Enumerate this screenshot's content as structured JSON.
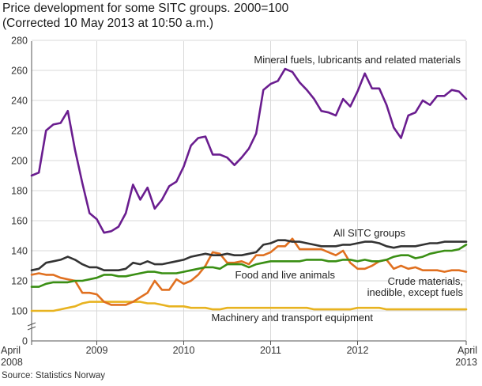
{
  "title_line1": "Price development for some SITC groups. 2000=100",
  "title_line2": "(Corrected 10 May 2013 at 10:50 a.m.)",
  "source": "Source: Statistics Norway",
  "chart_data": {
    "type": "line",
    "title": "Price development for some SITC groups. 2000=100",
    "subtitle": "(Corrected 10 May 2013 at 10:50 a.m.)",
    "xlabel": "",
    "ylabel": "",
    "ylim": [
      0,
      280
    ],
    "yticks": [
      0,
      100,
      120,
      140,
      160,
      180,
      200,
      220,
      240,
      260,
      280
    ],
    "axis_break": true,
    "grid": true,
    "x_start_month": "2008-04",
    "x_end_month": "2013-04",
    "x_tick_labels": [
      {
        "month_index": 0,
        "line1": "April",
        "line2": "2008"
      },
      {
        "month_index": 9,
        "line1": "2009",
        "line2": ""
      },
      {
        "month_index": 21,
        "line1": "2010",
        "line2": ""
      },
      {
        "month_index": 33,
        "line1": "2011",
        "line2": ""
      },
      {
        "month_index": 45,
        "line1": "2012",
        "line2": ""
      },
      {
        "month_index": 60,
        "line1": "April",
        "line2": "2013"
      }
    ],
    "series": [
      {
        "name": "Mineral fuels, lubricants and related materials",
        "color": "#6a1d8f",
        "values": [
          190,
          192,
          220,
          224,
          225,
          233,
          207,
          185,
          165,
          161,
          152,
          153,
          156,
          165,
          184,
          174,
          182,
          168,
          174,
          183,
          186,
          196,
          210,
          215,
          216,
          204,
          204,
          202,
          197,
          202,
          208,
          218,
          247,
          251,
          253,
          261,
          259,
          252,
          247,
          241,
          233,
          232,
          230,
          241,
          236,
          246,
          258,
          248,
          248,
          237,
          222,
          215,
          230,
          232,
          240,
          237,
          243,
          243,
          247,
          246,
          241
        ]
      },
      {
        "name": "All SITC groups",
        "color": "#333333",
        "values": [
          127,
          128,
          132,
          133,
          134,
          136,
          134,
          131,
          129,
          129,
          127,
          127,
          127,
          128,
          132,
          131,
          133,
          131,
          131,
          132,
          133,
          134,
          136,
          137,
          138,
          137,
          137,
          138,
          137,
          137,
          138,
          139,
          144,
          145,
          147,
          147,
          146,
          146,
          145,
          144,
          143,
          143,
          143,
          144,
          144,
          145,
          146,
          146,
          145,
          143,
          142,
          143,
          143,
          143,
          144,
          145,
          145,
          146,
          146,
          146,
          146
        ]
      },
      {
        "name": "Food and live animals",
        "color": "#3a8f14",
        "values": [
          116,
          116,
          118,
          119,
          119,
          119,
          120,
          120,
          121,
          122,
          124,
          124,
          123,
          123,
          124,
          125,
          126,
          126,
          125,
          125,
          125,
          126,
          127,
          128,
          129,
          129,
          128,
          131,
          131,
          131,
          129,
          131,
          132,
          133,
          133,
          133,
          133,
          133,
          134,
          134,
          134,
          133,
          133,
          134,
          134,
          133,
          134,
          133,
          133,
          134,
          136,
          137,
          137,
          135,
          136,
          138,
          139,
          140,
          140,
          141,
          144
        ]
      },
      {
        "name": "Crude materials, inedible, except fuels",
        "color": "#e07020",
        "values": [
          124,
          125,
          124,
          124,
          122,
          121,
          120,
          112,
          112,
          111,
          106,
          104,
          104,
          104,
          106,
          109,
          112,
          120,
          114,
          114,
          121,
          118,
          120,
          124,
          130,
          139,
          138,
          132,
          132,
          133,
          131,
          137,
          137,
          139,
          143,
          143,
          148,
          141,
          141,
          141,
          141,
          139,
          137,
          140,
          132,
          128,
          128,
          130,
          133,
          134,
          128,
          130,
          128,
          129,
          127,
          127,
          127,
          126,
          127,
          127,
          126
        ]
      },
      {
        "name": "Machinery and transport equipment",
        "color": "#e8b320",
        "values": [
          100,
          100,
          100,
          100,
          101,
          102,
          103,
          105,
          106,
          106,
          106,
          106,
          106,
          106,
          106,
          106,
          105,
          105,
          104,
          103,
          103,
          103,
          102,
          102,
          102,
          101,
          101,
          102,
          102,
          102,
          102,
          102,
          102,
          102,
          102,
          102,
          102,
          102,
          102,
          101,
          101,
          101,
          101,
          101,
          101,
          102,
          102,
          102,
          102,
          101,
          101,
          101,
          101,
          101,
          101,
          101,
          101,
          101,
          101,
          101,
          101
        ]
      }
    ],
    "annotations": [
      {
        "text": "Mineral fuels, lubricants and related materials",
        "series": 0
      },
      {
        "text": "All SITC groups",
        "series": 1
      },
      {
        "text": "Food and live animals",
        "series": 2
      },
      {
        "text": "Crude materials,",
        "series": 3
      },
      {
        "text": "inedible, except fuels",
        "series": 3
      },
      {
        "text": "Machinery and transport equipment",
        "series": 4
      }
    ]
  }
}
